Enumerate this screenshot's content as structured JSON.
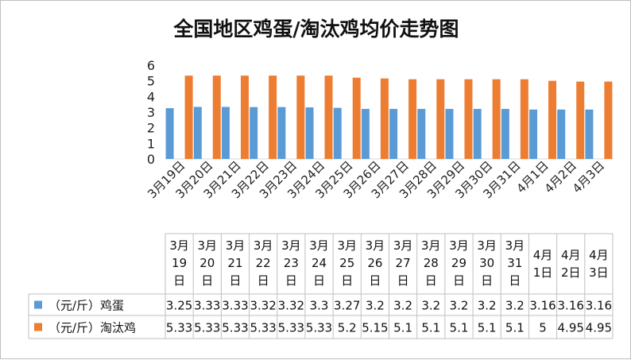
{
  "chart_data": {
    "type": "bar",
    "title": "全国地区鸡蛋/淘汰鸡均价走势图",
    "categories": [
      "3月19日",
      "3月20日",
      "3月21日",
      "3月22日",
      "3月23日",
      "3月24日",
      "3月25日",
      "3月26日",
      "3月27日",
      "3月28日",
      "3月29日",
      "3月30日",
      "3月31日",
      "4月1日",
      "4月2日",
      "4月3日"
    ],
    "table_headers": [
      [
        "3月",
        "19",
        "日"
      ],
      [
        "3月",
        "20",
        "日"
      ],
      [
        "3月",
        "21",
        "日"
      ],
      [
        "3月",
        "22",
        "日"
      ],
      [
        "3月",
        "23",
        "日"
      ],
      [
        "3月",
        "24",
        "日"
      ],
      [
        "3月",
        "25",
        "日"
      ],
      [
        "3月",
        "26",
        "日"
      ],
      [
        "3月",
        "27",
        "日"
      ],
      [
        "3月",
        "28",
        "日"
      ],
      [
        "3月",
        "29",
        "日"
      ],
      [
        "3月",
        "30",
        "日"
      ],
      [
        "3月",
        "31",
        "日"
      ],
      [
        "4月",
        "1日"
      ],
      [
        "4月",
        "2日"
      ],
      [
        "4月",
        "3日"
      ]
    ],
    "series": [
      {
        "name": "（元/斤）鸡蛋",
        "color": "#5b9bd5",
        "values": [
          3.25,
          3.33,
          3.33,
          3.32,
          3.32,
          3.3,
          3.27,
          3.2,
          3.2,
          3.2,
          3.2,
          3.2,
          3.2,
          3.16,
          3.16,
          3.16
        ]
      },
      {
        "name": "（元/斤）淘汰鸡",
        "color": "#ed7d31",
        "values": [
          5.33,
          5.33,
          5.33,
          5.33,
          5.33,
          5.33,
          5.2,
          5.15,
          5.1,
          5.1,
          5.1,
          5.1,
          5.1,
          5,
          4.95,
          4.95
        ]
      }
    ],
    "table_values": [
      [
        "3.25",
        "3.33",
        "3.33",
        "3.32",
        "3.32",
        "3.3",
        "3.27",
        "3.2",
        "3.2",
        "3.2",
        "3.2",
        "3.2",
        "3.2",
        "3.16",
        "3.16",
        "3.16"
      ],
      [
        "5.33",
        "5.33",
        "5.33",
        "5.33",
        "5.33",
        "5.33",
        "5.2",
        "5.15",
        "5.1",
        "5.1",
        "5.1",
        "5.1",
        "5.1",
        "5",
        "4.95",
        "4.95"
      ]
    ],
    "yticks": [
      "0",
      "1",
      "2",
      "3",
      "4",
      "5",
      "6"
    ],
    "ylim": [
      0,
      6
    ],
    "grid": false,
    "legend": "data-table"
  }
}
